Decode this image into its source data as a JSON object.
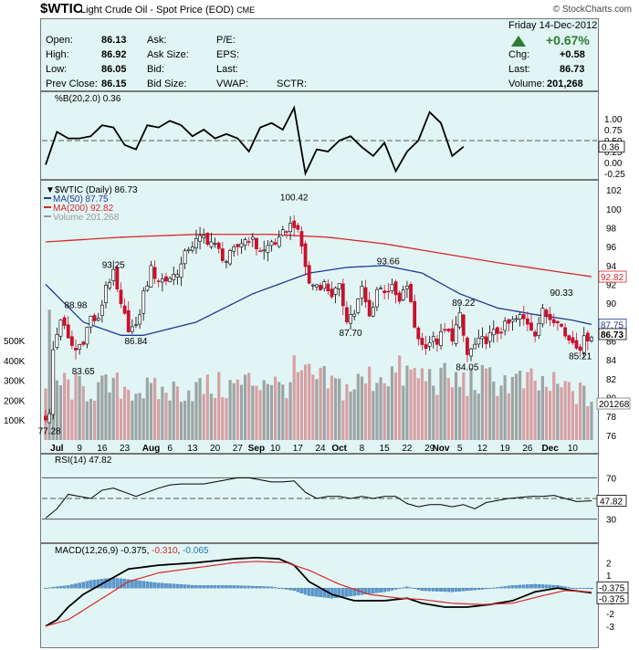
{
  "header": {
    "symbol": "$WTIC",
    "description": "Light Crude Oil - Spot Price (EOD)",
    "exchange": "CME",
    "copyright": "© StockCharts.com",
    "date": "Friday  14-Dec-2012",
    "change_pct": "+0.67%",
    "stats": {
      "open_label": "Open:",
      "open": "86.13",
      "high_label": "High:",
      "high": "86.92",
      "low_label": "Low:",
      "low": "86.05",
      "prev_label": "Prev Close:",
      "prev": "86.15",
      "ask_label": "Ask:",
      "asksize_label": "Ask Size:",
      "bid_label": "Bid:",
      "bidsize_label": "Bid Size:",
      "pe_label": "P/E:",
      "eps_label": "EPS:",
      "last_label": "Last:",
      "vwap_label": "VWAP:",
      "sctr_label": "SCTR:",
      "chg_label": "Chg:",
      "chg": "+0.58",
      "last2_label": "Last:",
      "last2": "86.73",
      "volume_label": "Volume:",
      "volume": "201,268"
    },
    "up_color": "#2e7d32"
  },
  "chart_data": [
    {
      "type": "line",
      "title": "%B(20,2.0) 0.36",
      "y_ticks": [
        1.0,
        0.75,
        0.5,
        0.25,
        0.0,
        -0.25
      ],
      "ref_lines": [
        0.5
      ],
      "last_label": "0.36",
      "x": [
        0,
        3,
        6,
        9,
        12,
        15,
        18,
        21,
        24,
        27,
        30,
        33,
        36,
        39,
        42,
        45,
        48,
        51,
        54,
        57,
        60,
        63,
        66,
        69,
        72,
        75,
        78,
        81,
        84,
        87,
        90,
        93,
        96,
        99,
        102,
        105,
        108,
        111
      ],
      "values": [
        -0.05,
        0.7,
        0.55,
        0.55,
        0.6,
        0.85,
        0.8,
        0.4,
        0.3,
        0.85,
        0.8,
        0.95,
        0.85,
        0.6,
        0.75,
        0.55,
        0.65,
        0.55,
        0.25,
        0.8,
        0.9,
        0.75,
        1.25,
        -0.25,
        0.3,
        0.25,
        0.5,
        0.6,
        0.35,
        0.15,
        0.45,
        -0.2,
        0.25,
        0.5,
        1.15,
        0.9,
        0.15,
        0.36
      ],
      "color": "#000000"
    },
    {
      "type": "candlestick",
      "title": "$WTIC (Daily) 86.73",
      "legend": [
        {
          "label": "MA(50) 87.75",
          "color": "#1f3a93"
        },
        {
          "label": "MA(200) 92.82",
          "color": "#d62728"
        },
        {
          "label": "Volume 201,268",
          "color": "#999999"
        }
      ],
      "x_ticks": [
        {
          "i": 3,
          "label": "Jul",
          "bold": true
        },
        {
          "i": 9,
          "label": "9"
        },
        {
          "i": 15,
          "label": "16"
        },
        {
          "i": 21,
          "label": "23"
        },
        {
          "i": 28,
          "label": "Aug",
          "bold": true
        },
        {
          "i": 33,
          "label": "6"
        },
        {
          "i": 39,
          "label": "13"
        },
        {
          "i": 45,
          "label": "20"
        },
        {
          "i": 51,
          "label": "27"
        },
        {
          "i": 56,
          "label": "Sep",
          "bold": true
        },
        {
          "i": 61,
          "label": "10"
        },
        {
          "i": 67,
          "label": "17"
        },
        {
          "i": 73,
          "label": "24"
        },
        {
          "i": 78,
          "label": "Oct",
          "bold": true
        },
        {
          "i": 84,
          "label": "8"
        },
        {
          "i": 90,
          "label": "15"
        },
        {
          "i": 96,
          "label": "22"
        },
        {
          "i": 102,
          "label": "29"
        },
        {
          "i": 105,
          "label": "Nov",
          "bold": true
        },
        {
          "i": 110,
          "label": "5"
        },
        {
          "i": 116,
          "label": "12"
        },
        {
          "i": 122,
          "label": "19"
        },
        {
          "i": 128,
          "label": "26"
        },
        {
          "i": 134,
          "label": "Dec",
          "bold": true
        },
        {
          "i": 140,
          "label": "10"
        }
      ],
      "y_ticks": [
        76,
        78,
        80,
        82,
        84,
        86,
        88,
        90,
        92,
        94,
        96,
        98,
        100,
        102
      ],
      "vol_ticks": [
        "100K",
        "200K",
        "300K",
        "400K",
        "500K"
      ],
      "annotations": [
        {
          "i": 1,
          "value": "77.28",
          "pos": "below"
        },
        {
          "i": 8,
          "value": "88.98",
          "pos": "above"
        },
        {
          "i": 10,
          "value": "83.65",
          "pos": "below"
        },
        {
          "i": 18,
          "value": "93.25",
          "pos": "above"
        },
        {
          "i": 24,
          "value": "86.84",
          "pos": "below"
        },
        {
          "i": 66,
          "value": "100.42",
          "pos": "above"
        },
        {
          "i": 81,
          "value": "87.70",
          "pos": "below"
        },
        {
          "i": 91,
          "value": "93.66",
          "pos": "above"
        },
        {
          "i": 111,
          "value": "89.22",
          "pos": "above"
        },
        {
          "i": 112,
          "value": "84.05",
          "pos": "below"
        },
        {
          "i": 137,
          "value": "90.33",
          "pos": "above"
        },
        {
          "i": 142,
          "value": "85.21",
          "pos": "below"
        }
      ],
      "right_labels": [
        {
          "value": 92.82,
          "label": "92.82",
          "color": "#d62728"
        },
        {
          "value": 87.75,
          "label": "87.75",
          "color": "#1f3a93"
        },
        {
          "value": 86.73,
          "label": "86.73",
          "color": "#000000"
        }
      ],
      "vol_label": "201268",
      "close_anchors": [
        [
          0,
          78
        ],
        [
          1,
          78
        ],
        [
          2,
          85
        ],
        [
          4,
          88.5
        ],
        [
          6,
          86
        ],
        [
          8,
          85
        ],
        [
          10,
          86.2
        ],
        [
          12,
          88.5
        ],
        [
          14,
          88
        ],
        [
          16,
          92
        ],
        [
          18,
          93
        ],
        [
          20,
          89.5
        ],
        [
          22,
          87.5
        ],
        [
          24,
          87.2
        ],
        [
          26,
          91
        ],
        [
          28,
          93.5
        ],
        [
          30,
          92.5
        ],
        [
          32,
          92.5
        ],
        [
          34,
          93
        ],
        [
          36,
          94
        ],
        [
          38,
          96
        ],
        [
          40,
          96.5
        ],
        [
          42,
          97
        ],
        [
          44,
          96.5
        ],
        [
          46,
          95.5
        ],
        [
          48,
          94.5
        ],
        [
          50,
          95.5
        ],
        [
          52,
          96.5
        ],
        [
          54,
          97
        ],
        [
          56,
          96
        ],
        [
          58,
          95.5
        ],
        [
          60,
          96.5
        ],
        [
          62,
          96.5
        ],
        [
          64,
          98
        ],
        [
          66,
          98.5
        ],
        [
          68,
          96
        ],
        [
          70,
          92
        ],
        [
          72,
          92
        ],
        [
          74,
          92
        ],
        [
          76,
          91
        ],
        [
          78,
          91.5
        ],
        [
          80,
          88.5
        ],
        [
          82,
          89
        ],
        [
          84,
          91.5
        ],
        [
          86,
          88.5
        ],
        [
          88,
          91.5
        ],
        [
          90,
          91.5
        ],
        [
          92,
          91.5
        ],
        [
          94,
          90
        ],
        [
          96,
          92
        ],
        [
          98,
          87.5
        ],
        [
          100,
          85.5
        ],
        [
          102,
          86
        ],
        [
          104,
          86
        ],
        [
          106,
          87
        ],
        [
          108,
          86.5
        ],
        [
          110,
          88.5
        ],
        [
          112,
          84.5
        ],
        [
          114,
          85.5
        ],
        [
          116,
          86
        ],
        [
          118,
          86.5
        ],
        [
          120,
          87
        ],
        [
          122,
          87.5
        ],
        [
          124,
          88
        ],
        [
          126,
          88.5
        ],
        [
          128,
          88
        ],
        [
          130,
          87
        ],
        [
          132,
          89
        ],
        [
          134,
          88.5
        ],
        [
          136,
          88.5
        ],
        [
          138,
          86.5
        ],
        [
          140,
          86
        ],
        [
          142,
          85.5
        ],
        [
          144,
          86.5
        ],
        [
          145,
          86.73
        ]
      ],
      "ma50_anchors": [
        [
          0,
          92
        ],
        [
          10,
          88
        ],
        [
          20,
          86.6
        ],
        [
          26,
          86.6
        ],
        [
          40,
          88
        ],
        [
          55,
          91
        ],
        [
          70,
          93.2
        ],
        [
          80,
          93.8
        ],
        [
          90,
          94
        ],
        [
          100,
          93.2
        ],
        [
          110,
          91
        ],
        [
          120,
          89.5
        ],
        [
          130,
          88.8
        ],
        [
          140,
          88.2
        ],
        [
          145,
          87.75
        ]
      ],
      "ma200_anchors": [
        [
          0,
          96.5
        ],
        [
          20,
          97
        ],
        [
          40,
          97.3
        ],
        [
          60,
          97.3
        ],
        [
          75,
          97
        ],
        [
          90,
          96.3
        ],
        [
          105,
          95.3
        ],
        [
          120,
          94.3
        ],
        [
          135,
          93.4
        ],
        [
          145,
          92.82
        ]
      ],
      "volume_anchors": [
        [
          0,
          250
        ],
        [
          1,
          520
        ],
        [
          2,
          300
        ],
        [
          10,
          250
        ],
        [
          20,
          270
        ],
        [
          30,
          240
        ],
        [
          40,
          260
        ],
        [
          50,
          270
        ],
        [
          60,
          320
        ],
        [
          62,
          250
        ],
        [
          66,
          330
        ],
        [
          80,
          260
        ],
        [
          90,
          340
        ],
        [
          100,
          320
        ],
        [
          110,
          290
        ],
        [
          120,
          300
        ],
        [
          130,
          280
        ],
        [
          140,
          250
        ],
        [
          145,
          201
        ]
      ]
    },
    {
      "type": "line",
      "title": "RSI(14) 47.82",
      "y_ticks": [
        70,
        50,
        30
      ],
      "ref_lines": [
        70,
        50,
        30
      ],
      "last_label": "47.82",
      "x": [
        0,
        3,
        6,
        9,
        12,
        15,
        18,
        21,
        24,
        27,
        30,
        33,
        36,
        39,
        42,
        45,
        48,
        51,
        54,
        57,
        60,
        63,
        66,
        69,
        72,
        75,
        78,
        81,
        84,
        87,
        90,
        93,
        96,
        99,
        102,
        105,
        108,
        111,
        114,
        117,
        120,
        123,
        126,
        129,
        132,
        135,
        138,
        141,
        145
      ],
      "values": [
        31,
        40,
        54,
        52,
        50,
        58,
        60,
        56,
        52,
        56,
        60,
        63,
        64,
        64,
        64,
        66,
        68,
        70,
        70,
        68,
        66,
        66,
        67,
        56,
        50,
        52,
        52,
        50,
        52,
        50,
        52,
        52,
        45,
        42,
        44,
        44,
        42,
        44,
        40,
        46,
        48,
        50,
        51,
        52,
        52,
        53,
        50,
        47,
        47.82
      ],
      "color": "#000000"
    },
    {
      "type": "line",
      "title": "MACD(12,26,9) -0.375, -0.310, -0.065",
      "title_parts": [
        {
          "text": "MACD(12,26,9) -0.375, ",
          "color": "#000000"
        },
        {
          "text": "-0.310",
          "color": "#d62728"
        },
        {
          "text": ", ",
          "color": "#000000"
        },
        {
          "text": "-0.065",
          "color": "#1f77b4"
        }
      ],
      "y_ticks": [
        2,
        1,
        0,
        -1,
        -2,
        -3
      ],
      "last_labels": [
        "-0.375",
        "-0.375"
      ],
      "series": [
        {
          "name": "MACD",
          "color": "#000000",
          "anchors": [
            [
              0,
              -3
            ],
            [
              3,
              -2.5
            ],
            [
              6,
              -1.5
            ],
            [
              10,
              -0.5
            ],
            [
              16,
              0.5
            ],
            [
              22,
              1.5
            ],
            [
              30,
              1.8
            ],
            [
              40,
              2.0
            ],
            [
              50,
              2.3
            ],
            [
              56,
              2.4
            ],
            [
              62,
              2.3
            ],
            [
              66,
              1.8
            ],
            [
              70,
              0.5
            ],
            [
              76,
              -0.5
            ],
            [
              82,
              -1.0
            ],
            [
              90,
              -1.0
            ],
            [
              96,
              -0.8
            ],
            [
              100,
              -1.2
            ],
            [
              106,
              -1.5
            ],
            [
              112,
              -1.5
            ],
            [
              118,
              -1.3
            ],
            [
              124,
              -1.0
            ],
            [
              130,
              -0.3
            ],
            [
              136,
              0.0
            ],
            [
              140,
              -0.2
            ],
            [
              145,
              -0.375
            ]
          ]
        },
        {
          "name": "Signal",
          "color": "#d62728",
          "anchors": [
            [
              0,
              -3
            ],
            [
              6,
              -2.5
            ],
            [
              14,
              -1.0
            ],
            [
              22,
              0.5
            ],
            [
              30,
              1.2
            ],
            [
              40,
              1.6
            ],
            [
              50,
              2.0
            ],
            [
              56,
              2.1
            ],
            [
              64,
              2.0
            ],
            [
              70,
              1.4
            ],
            [
              78,
              0.3
            ],
            [
              86,
              -0.5
            ],
            [
              94,
              -0.8
            ],
            [
              100,
              -0.9
            ],
            [
              108,
              -1.2
            ],
            [
              116,
              -1.3
            ],
            [
              124,
              -1.2
            ],
            [
              132,
              -0.6
            ],
            [
              138,
              -0.2
            ],
            [
              145,
              -0.31
            ]
          ]
        }
      ],
      "histogram_anchors": [
        [
          0,
          0
        ],
        [
          6,
          0.2
        ],
        [
          12,
          0.6
        ],
        [
          18,
          0.8
        ],
        [
          24,
          0.6
        ],
        [
          30,
          0.4
        ],
        [
          40,
          0.2
        ],
        [
          50,
          0.2
        ],
        [
          60,
          0.1
        ],
        [
          66,
          -0.2
        ],
        [
          70,
          -0.6
        ],
        [
          76,
          -0.8
        ],
        [
          82,
          -0.6
        ],
        [
          90,
          -0.3
        ],
        [
          96,
          0.1
        ],
        [
          100,
          -0.2
        ],
        [
          108,
          -0.3
        ],
        [
          116,
          -0.1
        ],
        [
          124,
          0.2
        ],
        [
          130,
          0.3
        ],
        [
          136,
          0.2
        ],
        [
          140,
          0
        ],
        [
          145,
          -0.065
        ]
      ]
    }
  ]
}
